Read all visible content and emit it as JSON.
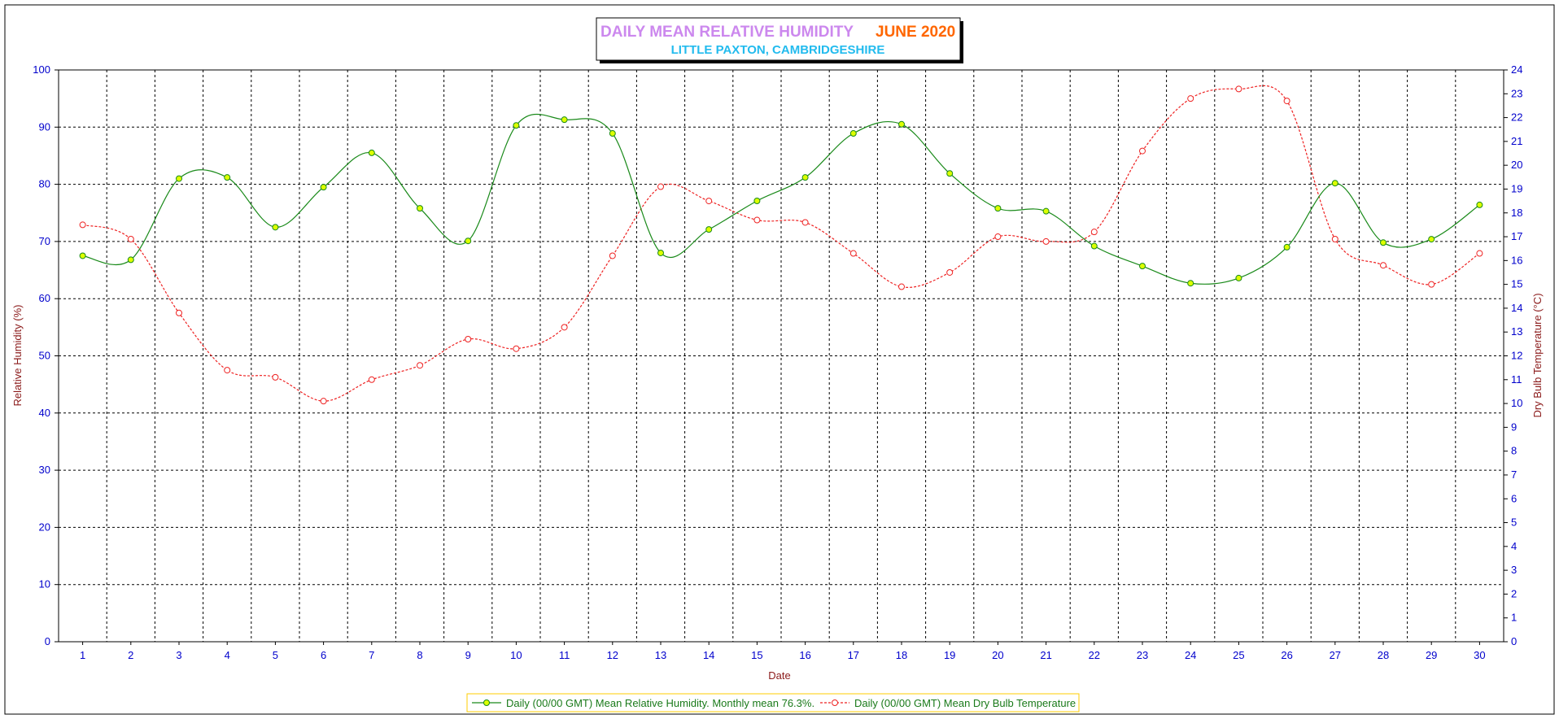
{
  "chart_data": {
    "type": "line",
    "title": "DAILY MEAN RELATIVE HUMIDITY",
    "title_month": "JUNE 2020",
    "subtitle": "LITTLE PAXTON, CAMBRIDGESHIRE",
    "xlabel": "Date",
    "ylabel_left": "Relative Humidity (%)",
    "ylabel_right": "Dry Bulb Temperature (°C)",
    "ylim_left": [
      0,
      100
    ],
    "ylim_right": [
      0,
      24
    ],
    "grid": true,
    "legend_position": "bottom",
    "x": [
      1,
      2,
      3,
      4,
      5,
      6,
      7,
      8,
      9,
      10,
      11,
      12,
      13,
      14,
      15,
      16,
      17,
      18,
      19,
      20,
      21,
      22,
      23,
      24,
      25,
      26,
      27,
      28,
      29,
      30
    ],
    "x_tick_labels": [
      "1",
      "2",
      "3",
      "4",
      "5",
      "6",
      "7",
      "8",
      "9",
      "10",
      "11",
      "12",
      "13",
      "14",
      "15",
      "16",
      "17",
      "18",
      "19",
      "20",
      "21",
      "22",
      "23",
      "24",
      "25",
      "26",
      "27",
      "28",
      "29",
      "30"
    ],
    "y_left_ticks": [
      "0",
      "10",
      "20",
      "30",
      "40",
      "50",
      "60",
      "70",
      "80",
      "90",
      "100"
    ],
    "y_right_ticks": [
      "0",
      "1",
      "2",
      "3",
      "4",
      "5",
      "6",
      "7",
      "8",
      "9",
      "10",
      "11",
      "12",
      "13",
      "14",
      "15",
      "16",
      "17",
      "18",
      "19",
      "20",
      "21",
      "22",
      "23",
      "24"
    ],
    "series": [
      {
        "name": "Daily (00/00 GMT) Mean Relative Humidity. Monthly mean 76.3%.",
        "axis": "left",
        "color": "#1a8a1a",
        "marker_fill": "#ddff00",
        "line_style": "solid",
        "values": [
          67.5,
          66.8,
          81.0,
          81.2,
          72.5,
          79.5,
          85.5,
          75.8,
          70.1,
          90.3,
          91.3,
          88.9,
          68.0,
          72.1,
          77.1,
          81.2,
          88.9,
          90.5,
          81.9,
          75.8,
          75.3,
          69.2,
          65.7,
          62.7,
          63.6,
          69.0,
          80.2,
          69.8,
          70.4,
          76.4
        ]
      },
      {
        "name": "Daily (00/00 GMT) Mean Dry Bulb Temperature",
        "axis": "right",
        "color": "#ee2222",
        "marker_fill": "#ffffff",
        "line_style": "dashed",
        "values": [
          17.5,
          16.9,
          13.8,
          11.4,
          11.1,
          10.1,
          11.0,
          11.6,
          12.7,
          12.3,
          13.2,
          16.2,
          19.1,
          18.5,
          17.7,
          17.6,
          16.3,
          14.9,
          15.5,
          17.0,
          16.8,
          17.2,
          20.6,
          22.8,
          23.2,
          22.7,
          16.9,
          15.8,
          15.0,
          16.3
        ]
      }
    ]
  },
  "colors": {
    "frame": "#000000",
    "tick_text": "#0000cc",
    "axis_title": "#8b1a1a",
    "legend_border": "#ffcc00"
  }
}
